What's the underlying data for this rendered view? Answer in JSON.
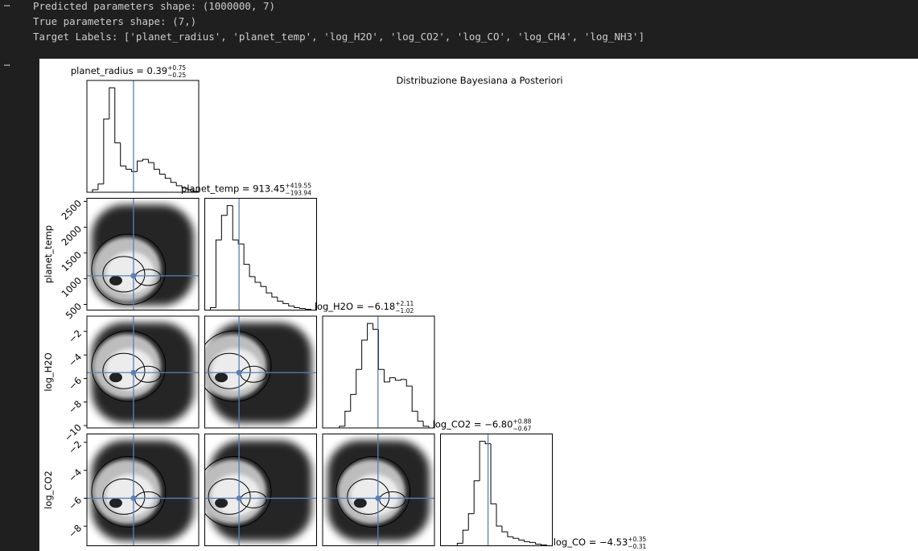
{
  "cells": [
    {
      "prompt": "⋯",
      "lines": [
        "Predicted parameters shape: (1000000, 7)",
        "True parameters shape: (7,)",
        "Target Labels: ['planet_radius', 'planet_temp', 'log_H2O', 'log_CO2', 'log_CO', 'log_CH4', 'log_NH3']"
      ]
    },
    {
      "prompt": "⋯"
    }
  ],
  "chart_data": {
    "type": "corner",
    "title": "Distribuzione Bayesiana a Posteriori",
    "line_color": "#5b80b8",
    "parameters": [
      {
        "name": "planet_radius",
        "title": "planet_radius = 0.39",
        "plus": "+0.75",
        "minus": "−0.25",
        "lim": [
          0,
          2.4
        ],
        "truth": 1.0,
        "bins": [
          0,
          0.12,
          0.24,
          0.36,
          0.48,
          0.6,
          0.72,
          0.84,
          0.96,
          1.08,
          1.2,
          1.32,
          1.44,
          1.56,
          1.68,
          1.8,
          1.92,
          2.04,
          2.16,
          2.28,
          2.4
        ],
        "counts": [
          0,
          3,
          10,
          89,
          127,
          60,
          32,
          28,
          25,
          38,
          40,
          36,
          28,
          22,
          17,
          12,
          8,
          5,
          3,
          1
        ]
      },
      {
        "name": "planet_temp",
        "title": "planet_temp = 913.45",
        "plus": "+419.55",
        "minus": "−193.94",
        "lim": [
          390,
          2560
        ],
        "truth": 1055,
        "yticks": [
          500,
          1000,
          1500,
          2000,
          2500
        ],
        "bins": [
          390,
          498.5,
          607,
          715.5,
          824,
          932.5,
          1041,
          1149.5,
          1258,
          1366.5,
          1475,
          1583.5,
          1692,
          1800.5,
          1909,
          2017.5,
          2126,
          2234.5,
          2343,
          2451.5,
          2560
        ],
        "counts": [
          0,
          3,
          86,
          116,
          128,
          86,
          81,
          56,
          41,
          34,
          29,
          21,
          16,
          11,
          8,
          5,
          3,
          2,
          1,
          0
        ]
      },
      {
        "name": "log_H2O",
        "title": "log_H2O = −6.18",
        "plus": "+2.11",
        "minus": "−1.02",
        "lim": [
          -10.2,
          -0.7
        ],
        "truth": -5.5,
        "yticks": [
          {
            "value": -10,
            "label": "−10"
          },
          {
            "value": -8,
            "label": "−8"
          },
          {
            "value": -6,
            "label": "−6"
          },
          {
            "value": -4,
            "label": "−4"
          },
          {
            "value": -2,
            "label": "−2"
          }
        ],
        "bins": [
          -10.2,
          -9.725,
          -9.25,
          -8.775,
          -8.3,
          -7.825,
          -7.35,
          -6.875,
          -6.4,
          -5.925,
          -5.45,
          -4.975,
          -4.5,
          -4.025,
          -3.55,
          -3.075,
          -2.6,
          -2.125,
          -1.65,
          -1.175,
          -0.7
        ],
        "counts": [
          0,
          0,
          0,
          2,
          20,
          40,
          70,
          105,
          125,
          118,
          70,
          55,
          60,
          57,
          58,
          50,
          20,
          8,
          2,
          0
        ]
      },
      {
        "name": "log_CO2",
        "title": "log_CO2 = −6.80",
        "plus": "+0.88",
        "minus": "−0.67",
        "lim": [
          -9.4,
          -1.4
        ],
        "truth": -6.0,
        "yticks": [
          {
            "value": -8,
            "label": "−8"
          },
          {
            "value": -6,
            "label": "−6"
          },
          {
            "value": -4,
            "label": "−4"
          },
          {
            "value": -2,
            "label": "−2"
          }
        ],
        "bins": [
          -9.4,
          -9.0,
          -8.6,
          -8.2,
          -7.8,
          -7.4,
          -7.0,
          -6.6,
          -6.2,
          -5.8,
          -5.4,
          -5.0,
          -4.6,
          -4.2,
          -3.8,
          -3.4,
          -3.0,
          -2.6,
          -2.2,
          -1.8,
          -1.4
        ],
        "counts": [
          0,
          0,
          0,
          3,
          19,
          39,
          79,
          127,
          124,
          51,
          24,
          17,
          11,
          9,
          7,
          5,
          4,
          2,
          1,
          0
        ]
      },
      {
        "name": "log_CO",
        "title": "log_CO = −4.53",
        "plus": "+0.35",
        "minus": "−0.31"
      }
    ]
  }
}
